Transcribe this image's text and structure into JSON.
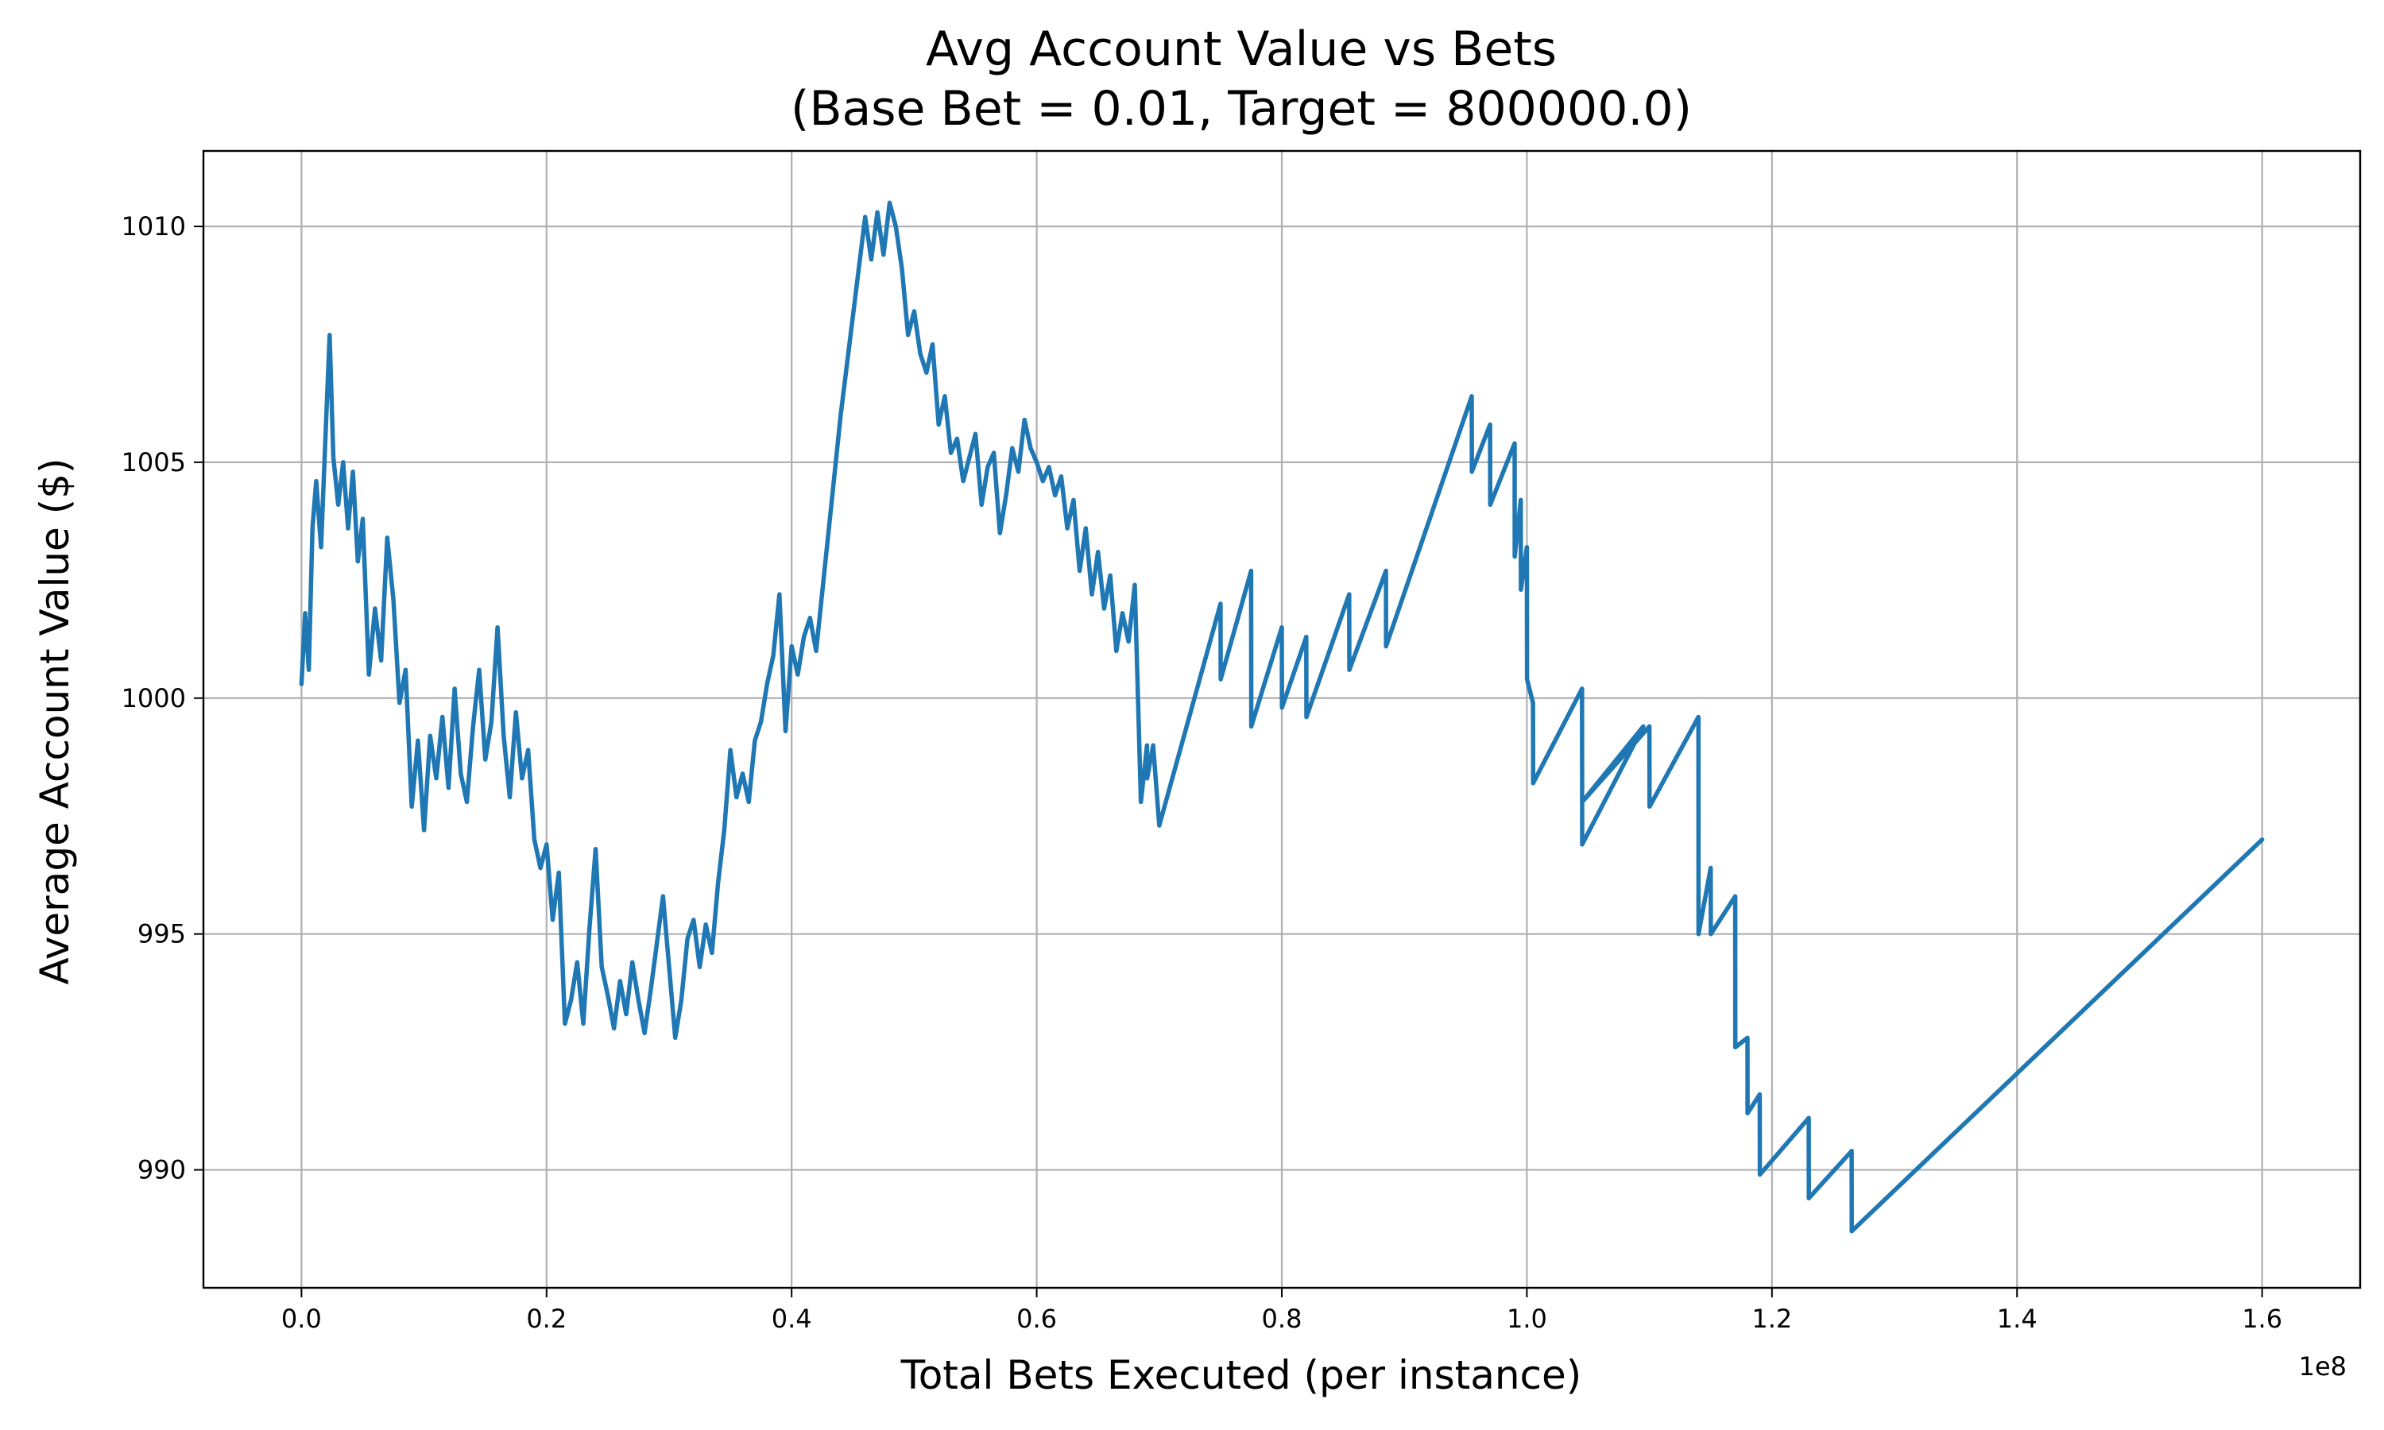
{
  "chart_data": {
    "type": "line",
    "title": "Avg Account Value vs Bets",
    "subtitle": "(Base Bet = 0.01, Target = 800000.0)",
    "xlabel": "Total Bets Executed (per instance)",
    "ylabel": "Average Account Value ($)",
    "x_offset_label": "1e8",
    "xlim": [
      -0.08,
      1.68
    ],
    "ylim": [
      987.5,
      1011.6
    ],
    "x_ticks": [
      0.0,
      0.2,
      0.4,
      0.6,
      0.8,
      1.0,
      1.2,
      1.4,
      1.6
    ],
    "x_tick_labels": [
      "0.0",
      "0.2",
      "0.4",
      "0.6",
      "0.8",
      "1.0",
      "1.2",
      "1.4",
      "1.6"
    ],
    "y_ticks": [
      990,
      995,
      1000,
      1005,
      1010
    ],
    "y_tick_labels": [
      "990",
      "995",
      "1000",
      "1005",
      "1010"
    ],
    "grid": true,
    "series": [
      {
        "color": "#1f77b4",
        "x": [
          0.0,
          0.003,
          0.006,
          0.009,
          0.012,
          0.016,
          0.02,
          0.023,
          0.026,
          0.03,
          0.034,
          0.038,
          0.042,
          0.046,
          0.05,
          0.055,
          0.06,
          0.065,
          0.07,
          0.075,
          0.08,
          0.085,
          0.09,
          0.095,
          0.1,
          0.105,
          0.11,
          0.115,
          0.12,
          0.125,
          0.13,
          0.135,
          0.14,
          0.145,
          0.15,
          0.155,
          0.16,
          0.165,
          0.17,
          0.175,
          0.18,
          0.185,
          0.19,
          0.195,
          0.2,
          0.205,
          0.21,
          0.215,
          0.22,
          0.225,
          0.23,
          0.235,
          0.24,
          0.245,
          0.25,
          0.255,
          0.26,
          0.265,
          0.27,
          0.275,
          0.28,
          0.285,
          0.29,
          0.295,
          0.3,
          0.305,
          0.31,
          0.315,
          0.32,
          0.325,
          0.33,
          0.335,
          0.34,
          0.345,
          0.35,
          0.355,
          0.36,
          0.365,
          0.37,
          0.375,
          0.38,
          0.385,
          0.39,
          0.395,
          0.4,
          0.405,
          0.41,
          0.415,
          0.42,
          0.44,
          0.46,
          0.465,
          0.47,
          0.475,
          0.48,
          0.485,
          0.49,
          0.495,
          0.5,
          0.505,
          0.51,
          0.515,
          0.52,
          0.525,
          0.53,
          0.535,
          0.54,
          0.545,
          0.55,
          0.555,
          0.56,
          0.565,
          0.57,
          0.575,
          0.58,
          0.585,
          0.59,
          0.595,
          0.6,
          0.605,
          0.61,
          0.615,
          0.62,
          0.625,
          0.63,
          0.635,
          0.64,
          0.645,
          0.65,
          0.655,
          0.66,
          0.665,
          0.67,
          0.675,
          0.68,
          0.685,
          0.69,
          0.6901,
          0.695,
          0.7,
          0.75,
          0.7501,
          0.775,
          0.7751,
          0.8,
          0.8001,
          0.82,
          0.8201,
          0.855,
          0.8551,
          0.885,
          0.8851,
          0.955,
          0.9551,
          0.97,
          0.9701,
          0.99,
          0.9901,
          0.995,
          0.9951,
          1.0,
          1.0001,
          1.005,
          1.0051,
          1.045,
          1.0451,
          1.095,
          1.0451,
          1.1,
          1.1001,
          1.14,
          1.1401,
          1.15,
          1.1501,
          1.17,
          1.1701,
          1.18,
          1.1801,
          1.19,
          1.1901,
          1.23,
          1.2301,
          1.265,
          1.2651,
          1.6
        ],
        "values": [
          1000.3,
          1001.8,
          1000.6,
          1003.6,
          1004.6,
          1003.2,
          1005.8,
          1007.7,
          1005.1,
          1004.1,
          1005.0,
          1003.6,
          1004.8,
          1002.9,
          1003.8,
          1000.5,
          1001.9,
          1000.8,
          1003.4,
          1002.1,
          999.9,
          1000.6,
          997.7,
          999.1,
          997.2,
          999.2,
          998.3,
          999.6,
          998.1,
          1000.2,
          998.4,
          997.8,
          999.4,
          1000.6,
          998.7,
          999.5,
          1001.5,
          999.2,
          997.9,
          999.7,
          998.3,
          998.9,
          997.0,
          996.4,
          996.9,
          995.3,
          996.3,
          993.1,
          993.6,
          994.4,
          993.1,
          995.1,
          996.8,
          994.3,
          993.7,
          993.0,
          994.0,
          993.3,
          994.4,
          993.6,
          992.9,
          993.8,
          994.8,
          995.8,
          994.3,
          992.8,
          993.6,
          994.9,
          995.3,
          994.3,
          995.2,
          994.6,
          996.1,
          997.2,
          998.9,
          997.9,
          998.4,
          997.8,
          999.1,
          999.5,
          1000.3,
          1000.9,
          1002.2,
          999.3,
          1001.1,
          1000.5,
          1001.3,
          1001.7,
          1001.0,
          1006.0,
          1010.2,
          1009.3,
          1010.3,
          1009.4,
          1010.5,
          1010.0,
          1009.1,
          1007.7,
          1008.2,
          1007.3,
          1006.9,
          1007.5,
          1005.8,
          1006.4,
          1005.2,
          1005.5,
          1004.6,
          1005.1,
          1005.6,
          1004.1,
          1004.9,
          1005.2,
          1003.5,
          1004.3,
          1005.3,
          1004.8,
          1005.9,
          1005.3,
          1005.0,
          1004.6,
          1004.9,
          1004.3,
          1004.7,
          1003.6,
          1004.2,
          1002.7,
          1003.6,
          1002.2,
          1003.1,
          1001.9,
          1002.6,
          1001.0,
          1001.8,
          1001.2,
          1002.4,
          997.8,
          999.0,
          998.3,
          999.0,
          997.3,
          1002.0,
          1000.4,
          1002.7,
          999.4,
          1001.5,
          999.8,
          1001.3,
          999.6,
          1002.2,
          1000.6,
          1002.7,
          1001.1,
          1006.4,
          1004.8,
          1005.8,
          1004.1,
          1005.4,
          1003.0,
          1004.2,
          1002.3,
          1003.2,
          1000.4,
          999.9,
          998.2,
          1000.2,
          996.9,
          999.4,
          997.8,
          999.4,
          997.7,
          999.6,
          995.0,
          996.4,
          995.0,
          995.8,
          992.6,
          992.8,
          991.2,
          991.6,
          989.9,
          991.1,
          989.4,
          990.4,
          988.7,
          997.0
        ]
      }
    ]
  }
}
